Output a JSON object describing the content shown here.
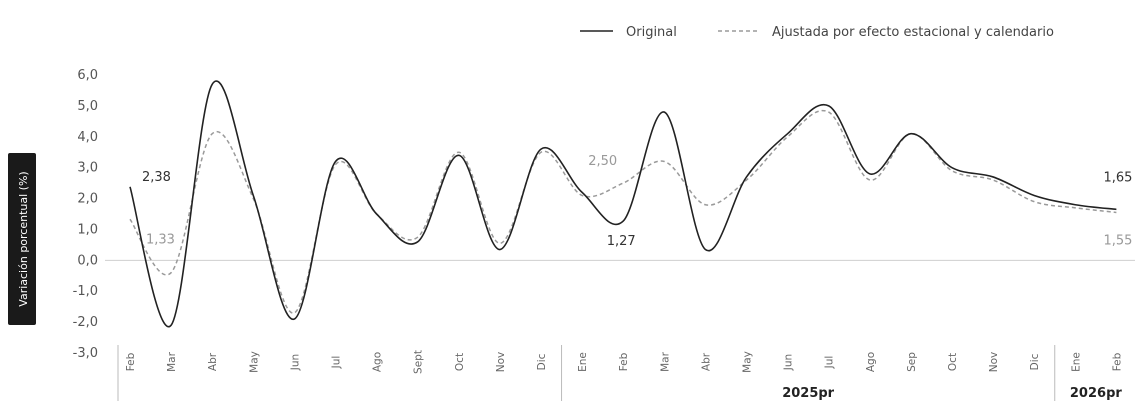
{
  "chart_data": {
    "type": "line",
    "title": "",
    "ylabel": "Variación porcentual (%)",
    "ylim": [
      -3.0,
      6.0
    ],
    "yticks": [
      "6,0",
      "5,0",
      "4,0",
      "3,0",
      "2,0",
      "1,0",
      "0,0",
      "-1,0",
      "-2,0",
      "-3,0"
    ],
    "yticks_values": [
      6,
      5,
      4,
      3,
      2,
      1,
      0,
      -1,
      -2,
      -3
    ],
    "grid": false,
    "legend_position": "top-right",
    "categories": [
      "Feb",
      "Mar",
      "Abr",
      "May",
      "Jun",
      "Jul",
      "Ago",
      "Sept",
      "Oct",
      "Nov",
      "Dic",
      "Ene",
      "Feb",
      "Mar",
      "Abr",
      "May",
      "Jun",
      "Jul",
      "Ago",
      "Sep",
      "Oct",
      "Nov",
      "Dic",
      "Ene",
      "Feb"
    ],
    "year_groups": [
      {
        "label": "",
        "start": 0,
        "end": 10
      },
      {
        "label": "2025pr",
        "start": 11,
        "end": 22
      },
      {
        "label": "2026pr",
        "start": 23,
        "end": 24
      }
    ],
    "series": [
      {
        "name": "Original",
        "style": "solid",
        "color": "#222222",
        "values": [
          2.38,
          -2.1,
          5.7,
          2.1,
          -1.9,
          3.2,
          1.5,
          0.6,
          3.4,
          0.35,
          3.6,
          2.2,
          1.27,
          4.8,
          0.35,
          2.7,
          4.1,
          5.0,
          2.8,
          4.1,
          3.0,
          2.7,
          2.1,
          1.8,
          1.65
        ]
      },
      {
        "name": "Ajustada por efecto estacional y calendario",
        "style": "dashed",
        "color": "#9a9a9a",
        "values": [
          1.33,
          -0.4,
          4.1,
          2.0,
          -1.7,
          3.1,
          1.5,
          0.75,
          3.5,
          0.55,
          3.5,
          2.1,
          2.5,
          3.2,
          1.8,
          2.6,
          4.0,
          4.8,
          2.6,
          4.1,
          2.9,
          2.6,
          1.9,
          1.7,
          1.55
        ]
      }
    ],
    "data_labels": [
      {
        "series": 0,
        "index": 0,
        "text": "2,38"
      },
      {
        "series": 1,
        "index": 0,
        "text": "1,33"
      },
      {
        "series": 1,
        "index": 12,
        "text": "2,50"
      },
      {
        "series": 0,
        "index": 12,
        "text": "1,27"
      },
      {
        "series": 0,
        "index": 24,
        "text": "1,65"
      },
      {
        "series": 1,
        "index": 24,
        "text": "1,55"
      }
    ]
  }
}
